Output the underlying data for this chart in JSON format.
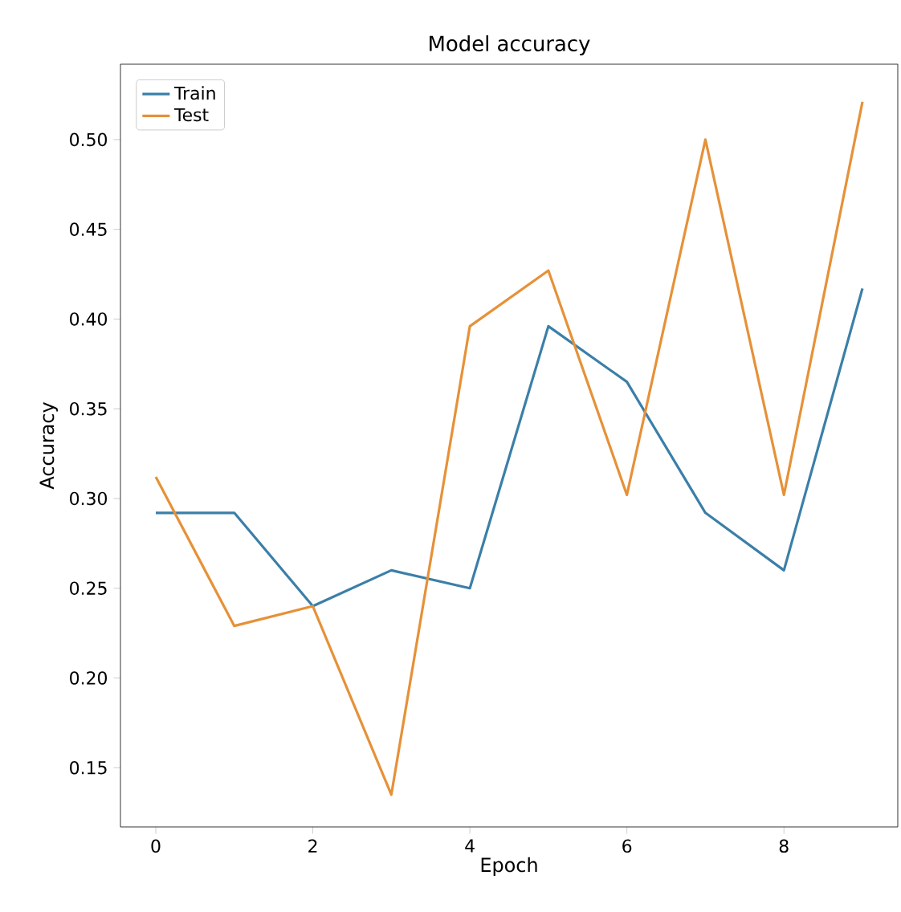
{
  "chart_data": {
    "type": "line",
    "title": "Model accuracy",
    "xlabel": "Epoch",
    "ylabel": "Accuracy",
    "x": [
      0,
      1,
      2,
      3,
      4,
      5,
      6,
      7,
      8,
      9
    ],
    "series": [
      {
        "name": "Train",
        "color": "#3b7fa8",
        "values": [
          0.292,
          0.292,
          0.24,
          0.26,
          0.25,
          0.396,
          0.365,
          0.292,
          0.26,
          0.417
        ]
      },
      {
        "name": "Test",
        "color": "#e69138",
        "values": [
          0.312,
          0.229,
          0.24,
          0.135,
          0.396,
          0.427,
          0.302,
          0.5,
          0.302,
          0.521
        ]
      }
    ],
    "xlim": [
      -0.45,
      9.45
    ],
    "ylim": [
      0.117,
      0.542
    ],
    "xticks": [
      0,
      2,
      4,
      6,
      8
    ],
    "yticks": [
      {
        "value": 0.15,
        "label": "0.15"
      },
      {
        "value": 0.2,
        "label": "0.20"
      },
      {
        "value": 0.25,
        "label": "0.25"
      },
      {
        "value": 0.3,
        "label": "0.30"
      },
      {
        "value": 0.35,
        "label": "0.35"
      },
      {
        "value": 0.4,
        "label": "0.40"
      },
      {
        "value": 0.45,
        "label": "0.45"
      },
      {
        "value": 0.5,
        "label": "0.50"
      }
    ],
    "legend": "top left",
    "grid": false,
    "marker": "none",
    "line_style": "solid"
  }
}
